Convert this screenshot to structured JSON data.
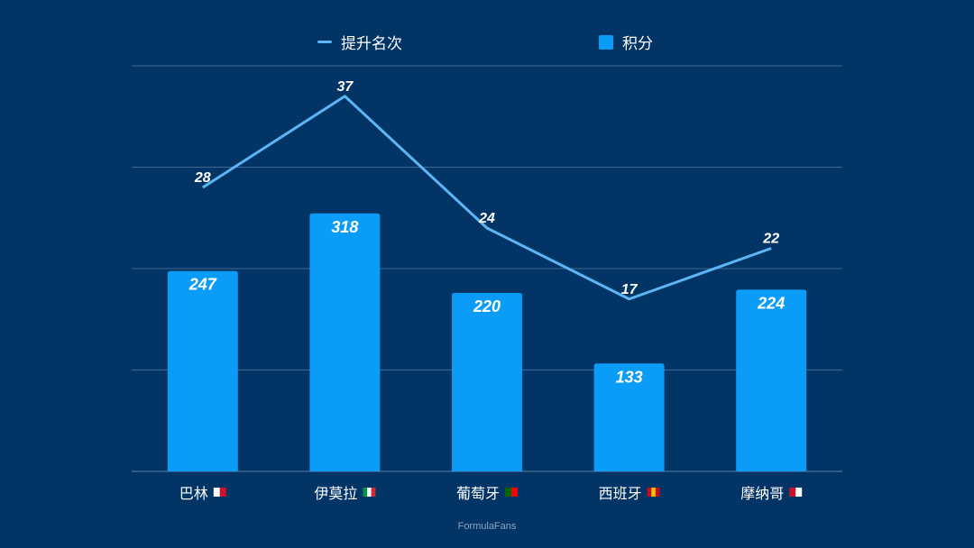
{
  "chart_data": {
    "type": "bar+line",
    "categories": [
      "巴林",
      "伊莫拉",
      "葡萄牙",
      "西班牙",
      "摩纳哥"
    ],
    "series": [
      {
        "name": "积分",
        "type": "bar",
        "values": [
          247,
          318,
          220,
          133,
          224
        ],
        "color": "#0a9cf6",
        "axis_range": [
          0,
          500
        ]
      },
      {
        "name": "提升名次",
        "type": "line",
        "values": [
          28,
          37,
          24,
          17,
          22
        ],
        "color": "#5cb6f6",
        "axis_range": [
          0,
          40
        ]
      }
    ],
    "flags": [
      {
        "colors": [
          "#ffffff",
          "#ce1126"
        ]
      },
      {
        "colors": [
          "#009246",
          "#ffffff",
          "#ce2b37"
        ]
      },
      {
        "colors": [
          "#006600",
          "#ff0000"
        ]
      },
      {
        "colors": [
          "#c60b1e",
          "#ffc400",
          "#c60b1e"
        ]
      },
      {
        "colors": [
          "#ce1126",
          "#ffffff"
        ]
      }
    ],
    "grid": true,
    "legend_position": "top",
    "data_labels": true
  },
  "footer": "FormulaFans"
}
